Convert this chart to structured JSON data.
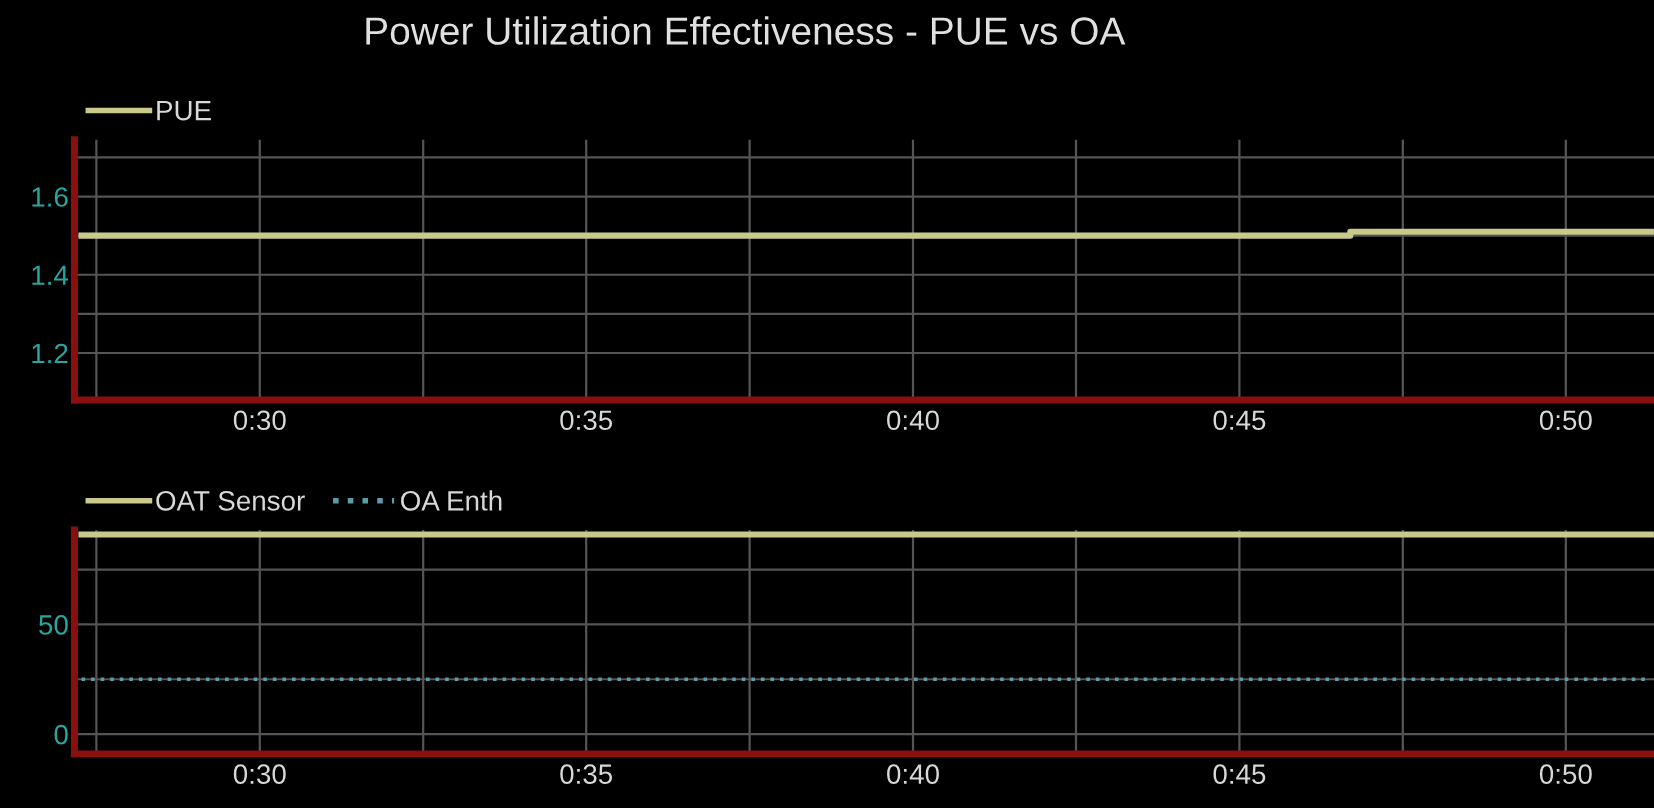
{
  "chart_data": [
    {
      "type": "line",
      "title": "Power Utilization Effectiveness - PUE vs OA",
      "x": [
        0.4545,
        0.7783,
        0.7783,
        0.855
      ],
      "series": [
        {
          "name": "PUE",
          "color": "#c9c98c",
          "values": [
            1.5,
            1.5,
            1.51,
            1.51
          ]
        }
      ],
      "xlim": [
        0.4527,
        0.8558
      ],
      "xticks": [
        {
          "value": 0.4583,
          "label": null
        },
        {
          "value": 0.5,
          "label": "0:30"
        },
        {
          "value": 0.5417,
          "label": null
        },
        {
          "value": 0.5833,
          "label": "0:35"
        },
        {
          "value": 0.625,
          "label": null
        },
        {
          "value": 0.6667,
          "label": "0:40"
        },
        {
          "value": 0.7083,
          "label": null
        },
        {
          "value": 0.75,
          "label": "0:45"
        },
        {
          "value": 0.7917,
          "label": null
        },
        {
          "value": 0.8333,
          "label": "0:50"
        }
      ],
      "ylim": [
        1.08,
        1.745
      ],
      "yticks": [
        {
          "value": 1.2,
          "label": "1.2"
        },
        {
          "value": 1.3,
          "label": null
        },
        {
          "value": 1.4,
          "label": "1.4"
        },
        {
          "value": 1.5,
          "label": null
        },
        {
          "value": 1.6,
          "label": "1.6"
        },
        {
          "value": 1.7,
          "label": null
        }
      ],
      "grid": true,
      "legend": "top left",
      "line_style": "solid"
    },
    {
      "type": "line",
      "x": [
        0.4545,
        0.855
      ],
      "series": [
        {
          "name": "OAT Sensor",
          "color": "#c9c98c",
          "values": [
            91,
            91
          ],
          "line_style": "solid"
        },
        {
          "name": "OA Enth",
          "color": "#5f9aa8",
          "values": [
            25,
            25
          ],
          "line_style": "dotted"
        }
      ],
      "xlim": [
        0.4527,
        0.8558
      ],
      "xticks": [
        {
          "value": 0.4583,
          "label": null
        },
        {
          "value": 0.5,
          "label": "0:30"
        },
        {
          "value": 0.5417,
          "label": null
        },
        {
          "value": 0.5833,
          "label": "0:35"
        },
        {
          "value": 0.625,
          "label": null
        },
        {
          "value": 0.6667,
          "label": "0:40"
        },
        {
          "value": 0.7083,
          "label": null
        },
        {
          "value": 0.75,
          "label": "0:45"
        },
        {
          "value": 0.7917,
          "label": null
        },
        {
          "value": 0.8333,
          "label": "0:50"
        }
      ],
      "ylim": [
        -9,
        93
      ],
      "yticks": [
        0,
        {
          "value": 25,
          "label": null
        },
        50,
        {
          "value": 75,
          "label": null
        }
      ],
      "grid": true,
      "legend": "top left"
    }
  ]
}
